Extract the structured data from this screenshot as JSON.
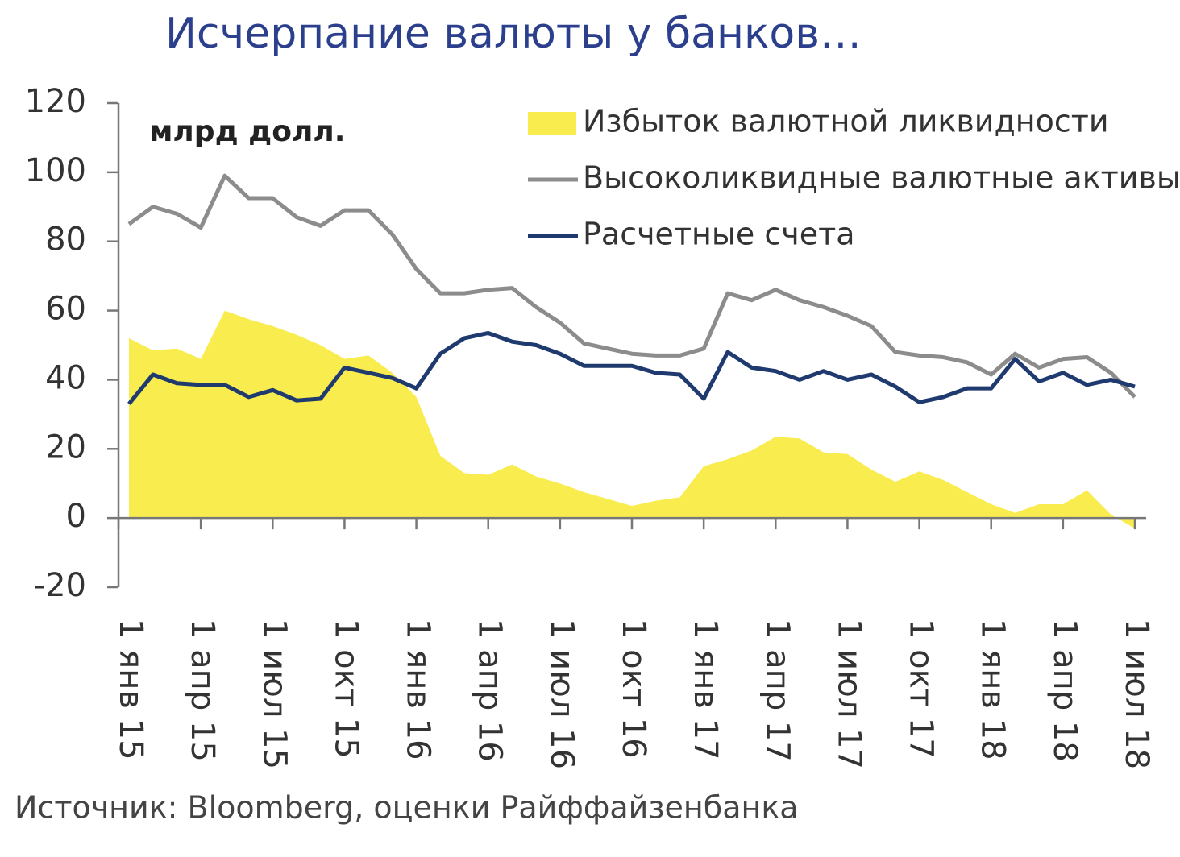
{
  "chart_data": {
    "type": "line",
    "title": "Исчерпание валюты у банков…",
    "y_unit_label": "млрд долл.",
    "source": "Источник: Bloomberg, оценки Райффайзенбанка",
    "categories": [
      "1 янв 15",
      null,
      null,
      "1 апр 15",
      null,
      null,
      "1 июл 15",
      null,
      null,
      "1 окт 15",
      null,
      null,
      "1 янв 16",
      null,
      null,
      "1 апр 16",
      null,
      null,
      "1 июл 16",
      null,
      null,
      "1 окт 16",
      null,
      null,
      "1 янв 17",
      null,
      null,
      "1 апр 17",
      null,
      null,
      "1 июл 17",
      null,
      null,
      "1 окт 17",
      null,
      null,
      "1 янв 18",
      null,
      null,
      "1 апр 18",
      null,
      null,
      "1 июл 18"
    ],
    "series": [
      {
        "name": "Избыток валютной ликвидности",
        "kind": "area",
        "color": "#f9ec4f",
        "values": [
          52,
          48.5,
          49,
          46,
          60,
          57.5,
          55.5,
          53,
          50,
          46,
          47,
          42,
          35,
          18,
          13,
          12.5,
          15.5,
          12,
          10,
          7.5,
          5.5,
          3.5,
          5,
          6,
          15,
          17,
          19.5,
          23.5,
          23,
          19,
          18.5,
          14,
          10.5,
          13.5,
          11,
          7.5,
          4,
          1.5,
          4,
          4,
          8,
          1,
          -3
        ]
      },
      {
        "name": "Высоколиквидные валютные активы",
        "kind": "line",
        "color": "#8c8c8c",
        "values": [
          85,
          90,
          88,
          84,
          99,
          92.5,
          92.5,
          87,
          84.5,
          89,
          89,
          82,
          72,
          65,
          65,
          66,
          66.5,
          61,
          56.5,
          50.5,
          49,
          47.5,
          47,
          47,
          49,
          65,
          63,
          66,
          63,
          61,
          58.5,
          55.5,
          48,
          47,
          46.5,
          45,
          41.5,
          47.5,
          43.5,
          46,
          46.5,
          42,
          35
        ]
      },
      {
        "name": "Расчетные счета",
        "kind": "line",
        "color": "#1f3a6e",
        "values": [
          33,
          41.5,
          39,
          38.5,
          38.5,
          35,
          37,
          34,
          34.5,
          43.5,
          42,
          40.5,
          37.5,
          47.5,
          52,
          53.5,
          51,
          50,
          47.5,
          44,
          44,
          44,
          42,
          41.5,
          34.5,
          48,
          43.5,
          42.5,
          40,
          42.5,
          40,
          41.5,
          38,
          33.5,
          35,
          37.5,
          37.5,
          46,
          39.5,
          42,
          38.5,
          40,
          38
        ]
      }
    ],
    "ylim": [
      -20,
      120
    ],
    "yticks": [
      -20,
      0,
      20,
      40,
      60,
      80,
      100,
      120
    ],
    "legend": "upper right",
    "grid": false
  }
}
